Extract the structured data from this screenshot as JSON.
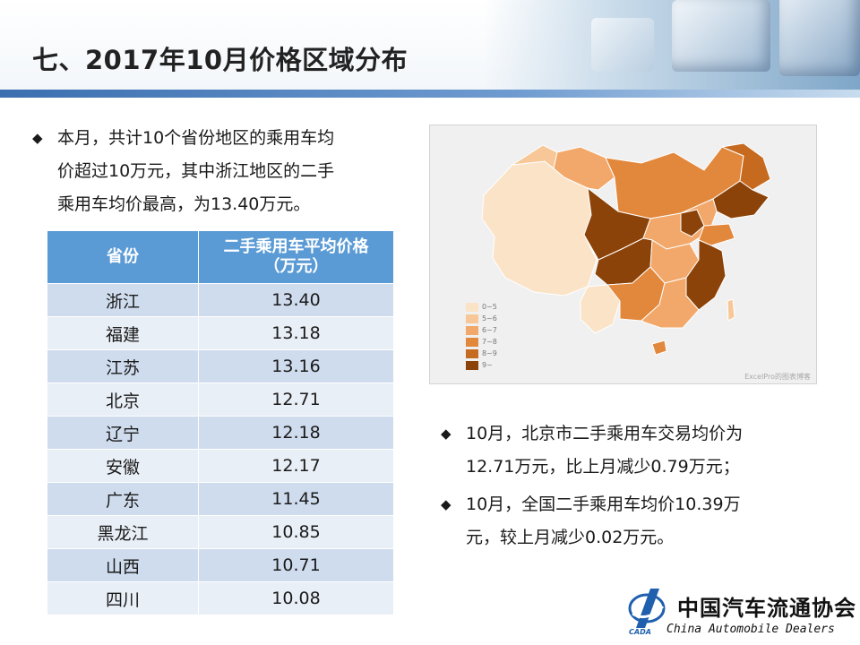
{
  "title": "七、2017年10月价格区域分布",
  "bullets": {
    "summary": [
      "本月，共计10个省份地区的乘用车均",
      "价超过10万元，其中浙江地区的二手",
      "乘用车均价最高，为13.40万元。"
    ],
    "beijing": [
      "10月，北京市二手乘用车交易均价为",
      "12.71万元，比上月减少0.79万元；"
    ],
    "national": [
      "10月，全国二手乘用车均价10.39万",
      "元，较上月减少0.02万元。"
    ]
  },
  "bullet_icon": "diamond-bullet",
  "table": {
    "headers": [
      "省份",
      "二手乘用车平均价格",
      "（万元）"
    ],
    "rows": [
      {
        "province": "浙江",
        "price": "13.40"
      },
      {
        "province": "福建",
        "price": "13.18"
      },
      {
        "province": "江苏",
        "price": "13.16"
      },
      {
        "province": "北京",
        "price": "12.71"
      },
      {
        "province": "辽宁",
        "price": "12.18"
      },
      {
        "province": "安徽",
        "price": "12.17"
      },
      {
        "province": "广东",
        "price": "11.45"
      },
      {
        "province": "黑龙江",
        "price": "10.85"
      },
      {
        "province": "山西",
        "price": "10.71"
      },
      {
        "province": "四川",
        "price": "10.08"
      }
    ]
  },
  "map": {
    "legend": [
      {
        "label": "0~5",
        "color": "#fbe3c8"
      },
      {
        "label": "5~6",
        "color": "#f7c797"
      },
      {
        "label": "6~7",
        "color": "#f2a86a"
      },
      {
        "label": "7~8",
        "color": "#e2883c"
      },
      {
        "label": "8~9",
        "color": "#c66a1f"
      },
      {
        "label": "9~",
        "color": "#8c4309"
      }
    ],
    "credit": "ExcelPro的图表博客"
  },
  "logo": {
    "cn": "中国汽车流通协会",
    "en": "China  Automobile Dealers",
    "mark_text": "CADA",
    "color": "#1f5fae"
  }
}
